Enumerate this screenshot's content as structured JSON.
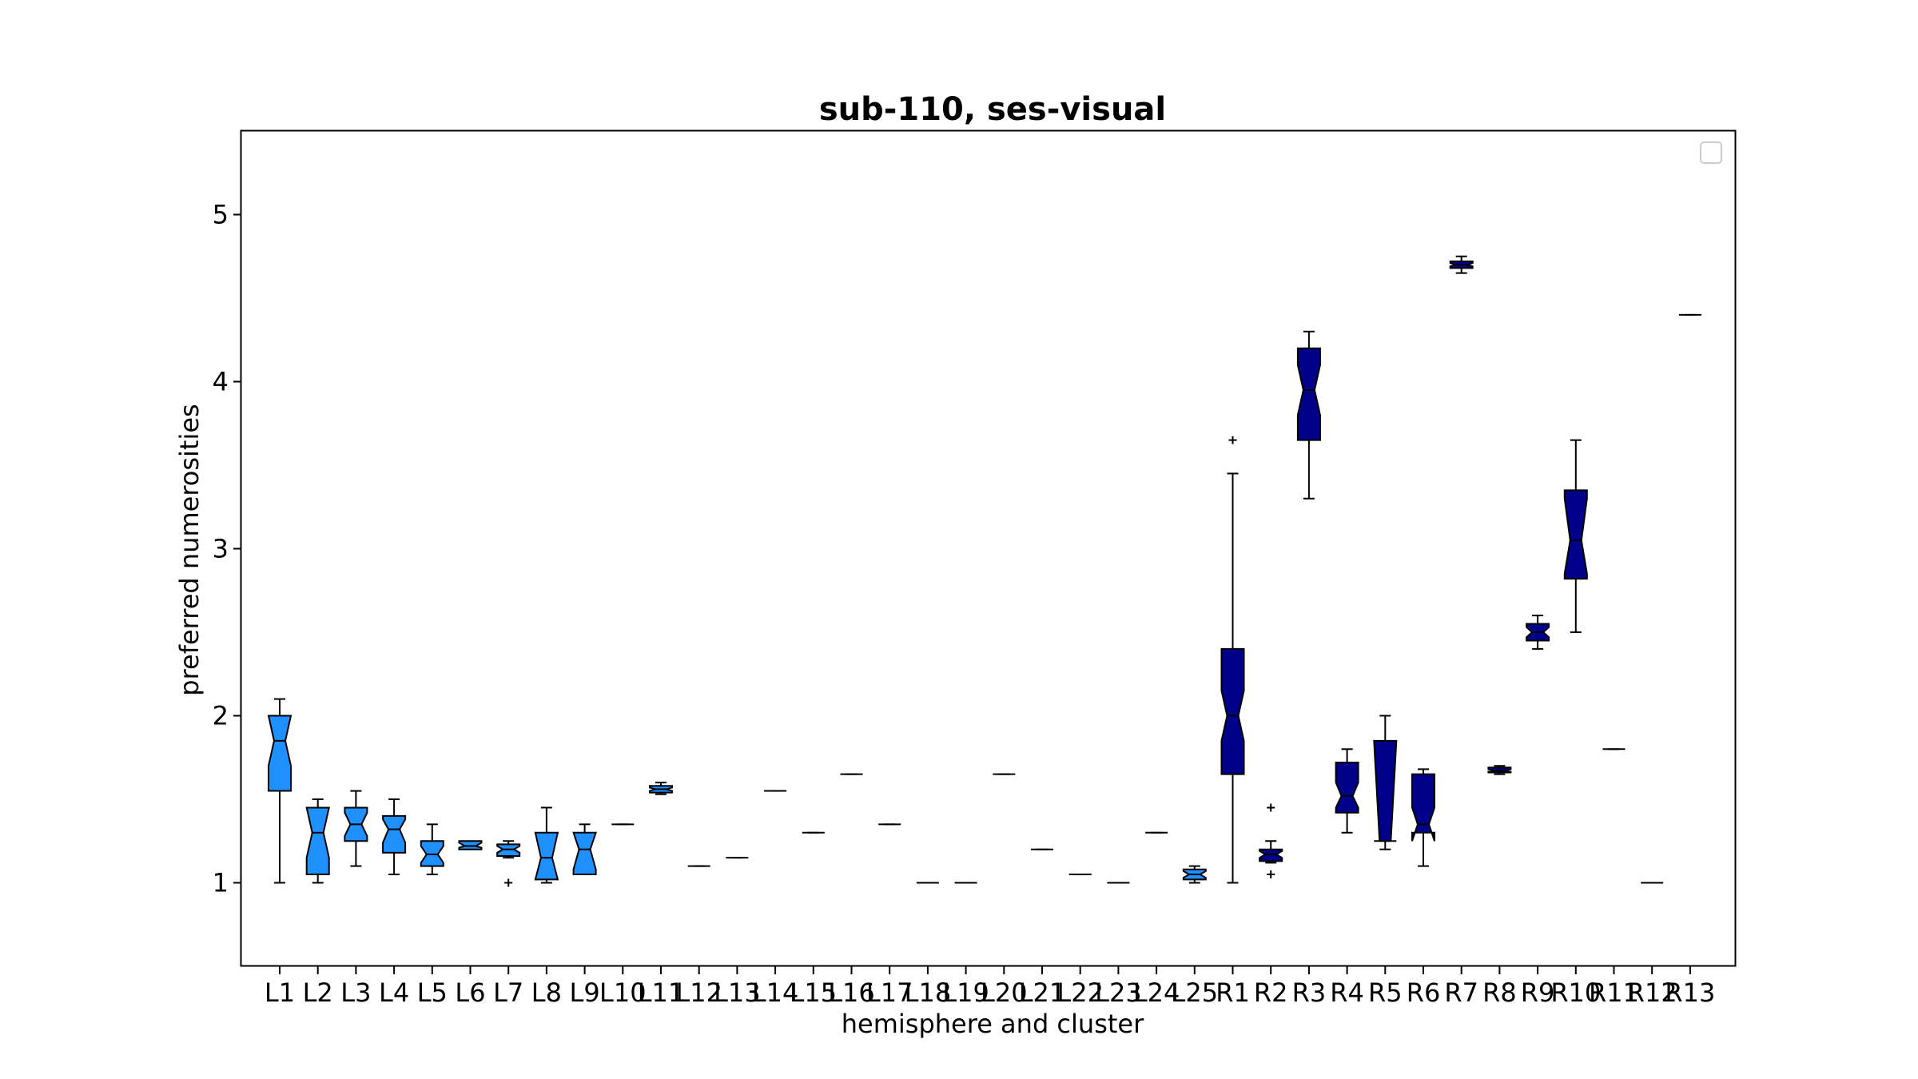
{
  "chart_data": {
    "type": "box",
    "title": "sub-110, ses-visual",
    "xlabel": "hemisphere and cluster",
    "ylabel": "preferred numerosities",
    "ylim": [
      0.5,
      5.5
    ],
    "yticks": [
      "1",
      "2",
      "3",
      "4",
      "5"
    ],
    "notched": true,
    "legend": {
      "placement": "top-right",
      "entries": []
    },
    "grid": false,
    "colors": {
      "left": "#1e90ff",
      "right": "#00008b",
      "edge": "#000000"
    },
    "categories": [
      "L1",
      "L2",
      "L3",
      "L4",
      "L5",
      "L6",
      "L7",
      "L8",
      "L9",
      "L10",
      "L11",
      "L12",
      "L13",
      "L14",
      "L15",
      "L16",
      "L17",
      "L18",
      "L19",
      "L20",
      "L21",
      "L22",
      "L23",
      "L24",
      "L25",
      "R1",
      "R2",
      "R3",
      "R4",
      "R5",
      "R6",
      "R7",
      "R8",
      "R9",
      "R10",
      "R11",
      "R12",
      "R13"
    ],
    "series": [
      {
        "label": "L1",
        "hemi": "L",
        "q1": 1.55,
        "med": 1.85,
        "q3": 2.0,
        "nlo": 1.7,
        "nhi": 2.0,
        "wlo": 1.0,
        "whi": 2.1,
        "fliers": []
      },
      {
        "label": "L2",
        "hemi": "L",
        "q1": 1.05,
        "med": 1.3,
        "q3": 1.45,
        "nlo": 1.15,
        "nhi": 1.45,
        "wlo": 1.0,
        "whi": 1.5,
        "fliers": []
      },
      {
        "label": "L3",
        "hemi": "L",
        "q1": 1.25,
        "med": 1.35,
        "q3": 1.45,
        "nlo": 1.28,
        "nhi": 1.42,
        "wlo": 1.1,
        "whi": 1.55,
        "fliers": []
      },
      {
        "label": "L4",
        "hemi": "L",
        "q1": 1.18,
        "med": 1.32,
        "q3": 1.4,
        "nlo": 1.24,
        "nhi": 1.38,
        "wlo": 1.05,
        "whi": 1.5,
        "fliers": []
      },
      {
        "label": "L5",
        "hemi": "L",
        "q1": 1.1,
        "med": 1.17,
        "q3": 1.25,
        "nlo": 1.12,
        "nhi": 1.22,
        "wlo": 1.05,
        "whi": 1.35,
        "fliers": []
      },
      {
        "label": "L6",
        "hemi": "L",
        "q1": 1.2,
        "med": 1.22,
        "q3": 1.25,
        "nlo": 1.21,
        "nhi": 1.24,
        "wlo": 1.2,
        "whi": 1.25,
        "fliers": []
      },
      {
        "label": "L7",
        "hemi": "L",
        "q1": 1.16,
        "med": 1.2,
        "q3": 1.23,
        "nlo": 1.18,
        "nhi": 1.22,
        "wlo": 1.15,
        "whi": 1.25,
        "fliers": [
          1.0
        ]
      },
      {
        "label": "L8",
        "hemi": "L",
        "q1": 1.02,
        "med": 1.15,
        "q3": 1.3,
        "nlo": 1.02,
        "nhi": 1.3,
        "wlo": 1.0,
        "whi": 1.45,
        "fliers": []
      },
      {
        "label": "L9",
        "hemi": "L",
        "q1": 1.05,
        "med": 1.2,
        "q3": 1.3,
        "nlo": 1.08,
        "nhi": 1.3,
        "wlo": 1.05,
        "whi": 1.35,
        "fliers": []
      },
      {
        "label": "L10",
        "hemi": "L",
        "q1": 1.35,
        "med": 1.35,
        "q3": 1.35,
        "nlo": 1.35,
        "nhi": 1.35,
        "wlo": 1.35,
        "whi": 1.35,
        "fliers": []
      },
      {
        "label": "L11",
        "hemi": "L",
        "q1": 1.54,
        "med": 1.56,
        "q3": 1.58,
        "nlo": 1.55,
        "nhi": 1.57,
        "wlo": 1.53,
        "whi": 1.6,
        "fliers": []
      },
      {
        "label": "L12",
        "hemi": "L",
        "q1": 1.1,
        "med": 1.1,
        "q3": 1.1,
        "nlo": 1.1,
        "nhi": 1.1,
        "wlo": 1.1,
        "whi": 1.1,
        "fliers": []
      },
      {
        "label": "L13",
        "hemi": "L",
        "q1": 1.15,
        "med": 1.15,
        "q3": 1.15,
        "nlo": 1.15,
        "nhi": 1.15,
        "wlo": 1.15,
        "whi": 1.15,
        "fliers": []
      },
      {
        "label": "L14",
        "hemi": "L",
        "q1": 1.55,
        "med": 1.55,
        "q3": 1.55,
        "nlo": 1.55,
        "nhi": 1.55,
        "wlo": 1.55,
        "whi": 1.55,
        "fliers": []
      },
      {
        "label": "L15",
        "hemi": "L",
        "q1": 1.3,
        "med": 1.3,
        "q3": 1.3,
        "nlo": 1.3,
        "nhi": 1.3,
        "wlo": 1.3,
        "whi": 1.3,
        "fliers": []
      },
      {
        "label": "L16",
        "hemi": "L",
        "q1": 1.65,
        "med": 1.65,
        "q3": 1.65,
        "nlo": 1.65,
        "nhi": 1.65,
        "wlo": 1.65,
        "whi": 1.65,
        "fliers": []
      },
      {
        "label": "L17",
        "hemi": "L",
        "q1": 1.35,
        "med": 1.35,
        "q3": 1.35,
        "nlo": 1.35,
        "nhi": 1.35,
        "wlo": 1.35,
        "whi": 1.35,
        "fliers": []
      },
      {
        "label": "L18",
        "hemi": "L",
        "q1": 1.0,
        "med": 1.0,
        "q3": 1.0,
        "nlo": 1.0,
        "nhi": 1.0,
        "wlo": 1.0,
        "whi": 1.0,
        "fliers": []
      },
      {
        "label": "L19",
        "hemi": "L",
        "q1": 1.0,
        "med": 1.0,
        "q3": 1.0,
        "nlo": 1.0,
        "nhi": 1.0,
        "wlo": 1.0,
        "whi": 1.0,
        "fliers": []
      },
      {
        "label": "L20",
        "hemi": "L",
        "q1": 1.65,
        "med": 1.65,
        "q3": 1.65,
        "nlo": 1.65,
        "nhi": 1.65,
        "wlo": 1.65,
        "whi": 1.65,
        "fliers": []
      },
      {
        "label": "L21",
        "hemi": "L",
        "q1": 1.2,
        "med": 1.2,
        "q3": 1.2,
        "nlo": 1.2,
        "nhi": 1.2,
        "wlo": 1.2,
        "whi": 1.2,
        "fliers": []
      },
      {
        "label": "L22",
        "hemi": "L",
        "q1": 1.05,
        "med": 1.05,
        "q3": 1.05,
        "nlo": 1.05,
        "nhi": 1.05,
        "wlo": 1.05,
        "whi": 1.05,
        "fliers": []
      },
      {
        "label": "L23",
        "hemi": "L",
        "q1": 1.0,
        "med": 1.0,
        "q3": 1.0,
        "nlo": 1.0,
        "nhi": 1.0,
        "wlo": 1.0,
        "whi": 1.0,
        "fliers": []
      },
      {
        "label": "L24",
        "hemi": "L",
        "q1": 1.3,
        "med": 1.3,
        "q3": 1.3,
        "nlo": 1.3,
        "nhi": 1.3,
        "wlo": 1.3,
        "whi": 1.3,
        "fliers": []
      },
      {
        "label": "L25",
        "hemi": "L",
        "q1": 1.02,
        "med": 1.05,
        "q3": 1.08,
        "nlo": 1.03,
        "nhi": 1.07,
        "wlo": 1.0,
        "whi": 1.1,
        "fliers": []
      },
      {
        "label": "R1",
        "hemi": "R",
        "q1": 1.65,
        "med": 2.0,
        "q3": 2.4,
        "nlo": 1.85,
        "nhi": 2.15,
        "wlo": 1.0,
        "whi": 3.45,
        "fliers": [
          3.65
        ]
      },
      {
        "label": "R2",
        "hemi": "R",
        "q1": 1.13,
        "med": 1.17,
        "q3": 1.2,
        "nlo": 1.15,
        "nhi": 1.19,
        "wlo": 1.12,
        "whi": 1.25,
        "fliers": [
          1.45,
          1.05
        ]
      },
      {
        "label": "R3",
        "hemi": "R",
        "q1": 3.65,
        "med": 3.95,
        "q3": 4.2,
        "nlo": 3.8,
        "nhi": 4.1,
        "wlo": 3.3,
        "whi": 4.3,
        "fliers": []
      },
      {
        "label": "R4",
        "hemi": "R",
        "q1": 1.42,
        "med": 1.52,
        "q3": 1.72,
        "nlo": 1.45,
        "nhi": 1.6,
        "wlo": 1.3,
        "whi": 1.8,
        "fliers": []
      },
      {
        "label": "R5",
        "hemi": "R",
        "q1": 1.25,
        "med": 1.25,
        "q3": 1.85,
        "nlo": 1.25,
        "nhi": 1.85,
        "wlo": 1.2,
        "whi": 2.0,
        "fliers": []
      },
      {
        "label": "R6",
        "hemi": "R",
        "q1": 1.3,
        "med": 1.35,
        "q3": 1.65,
        "nlo": 1.25,
        "nhi": 1.45,
        "wlo": 1.1,
        "whi": 1.68,
        "fliers": []
      },
      {
        "label": "R7",
        "hemi": "R",
        "q1": 4.68,
        "med": 4.7,
        "q3": 4.72,
        "nlo": 4.69,
        "nhi": 4.71,
        "wlo": 4.65,
        "whi": 4.75,
        "fliers": []
      },
      {
        "label": "R8",
        "hemi": "R",
        "q1": 1.66,
        "med": 1.67,
        "q3": 1.69,
        "nlo": 1.665,
        "nhi": 1.68,
        "wlo": 1.65,
        "whi": 1.7,
        "fliers": []
      },
      {
        "label": "R9",
        "hemi": "R",
        "q1": 2.45,
        "med": 2.5,
        "q3": 2.55,
        "nlo": 2.47,
        "nhi": 2.53,
        "wlo": 2.4,
        "whi": 2.6,
        "fliers": []
      },
      {
        "label": "R10",
        "hemi": "R",
        "q1": 2.82,
        "med": 3.05,
        "q3": 3.35,
        "nlo": 2.85,
        "nhi": 3.3,
        "wlo": 2.5,
        "whi": 3.65,
        "fliers": []
      },
      {
        "label": "R11",
        "hemi": "R",
        "q1": 1.8,
        "med": 1.8,
        "q3": 1.8,
        "nlo": 1.8,
        "nhi": 1.8,
        "wlo": 1.8,
        "whi": 1.8,
        "fliers": []
      },
      {
        "label": "R12",
        "hemi": "R",
        "q1": 1.0,
        "med": 1.0,
        "q3": 1.0,
        "nlo": 1.0,
        "nhi": 1.0,
        "wlo": 1.0,
        "whi": 1.0,
        "fliers": []
      },
      {
        "label": "R13",
        "hemi": "R",
        "q1": 4.4,
        "med": 4.4,
        "q3": 4.4,
        "nlo": 4.4,
        "nhi": 4.4,
        "wlo": 4.4,
        "whi": 4.4,
        "fliers": []
      }
    ]
  }
}
